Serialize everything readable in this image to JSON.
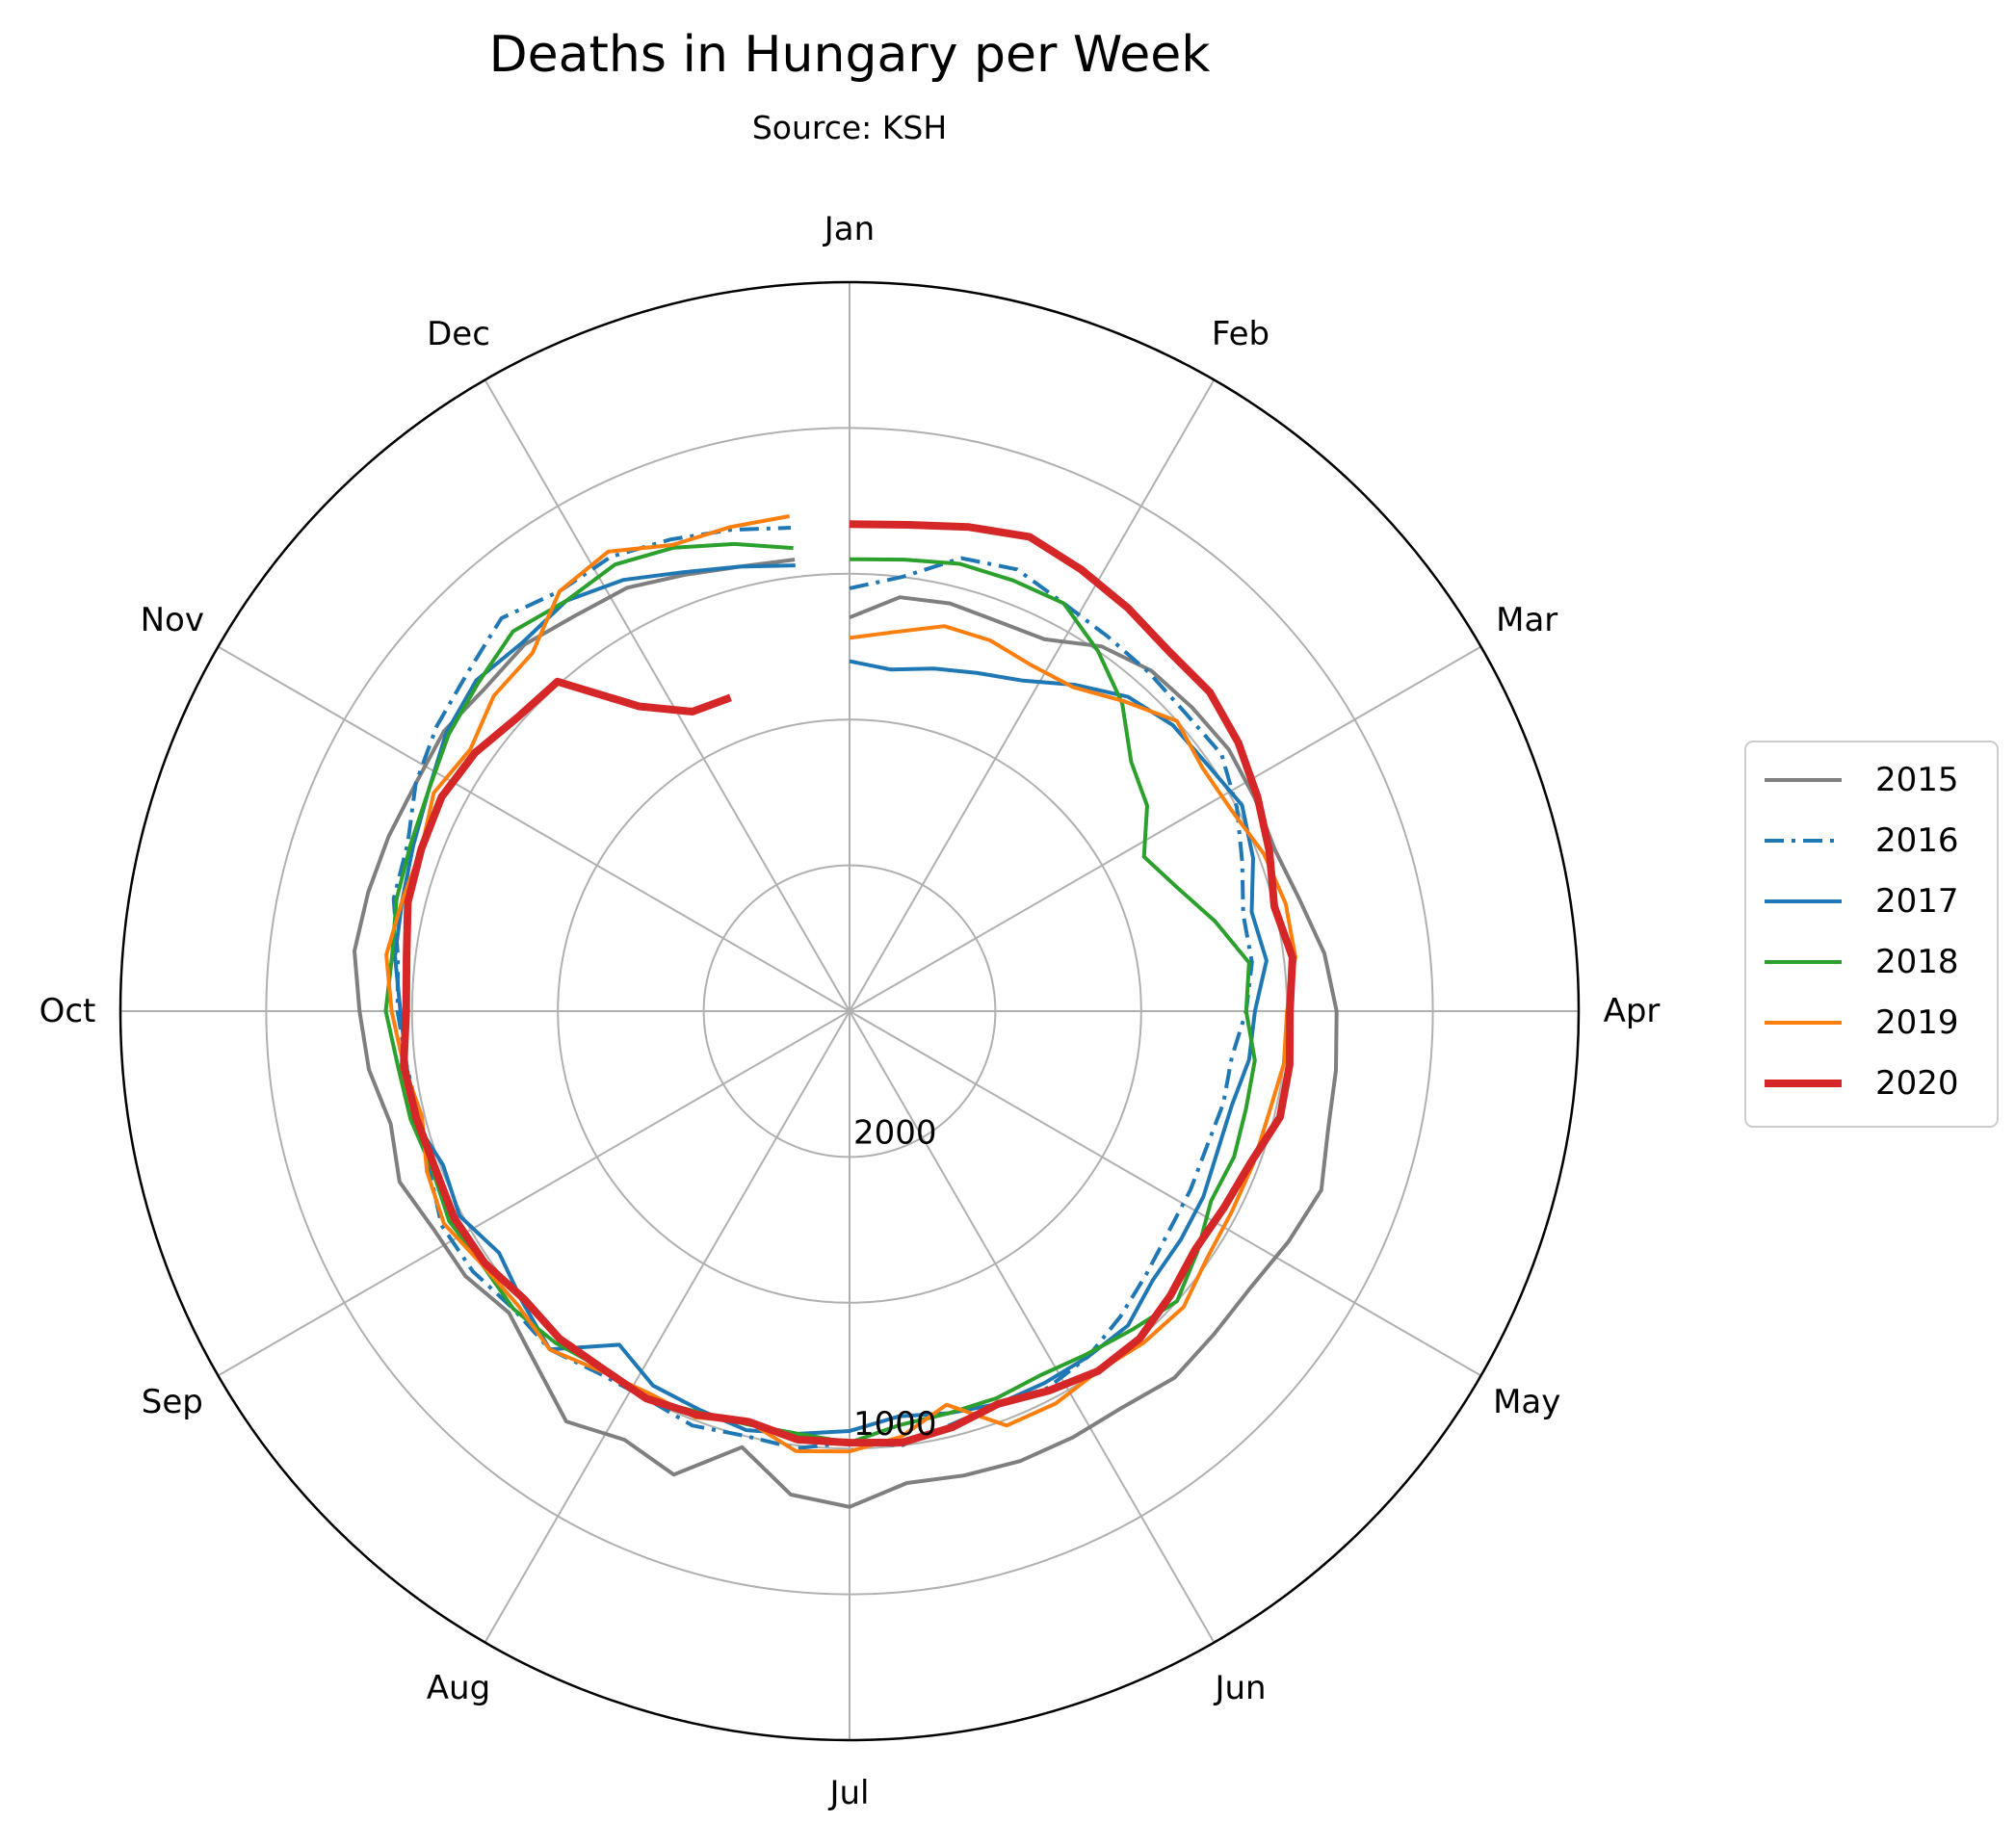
{
  "chart_data": {
    "type": "line",
    "projection": "polar",
    "title": "Deaths in Hungary per Week",
    "subtitle": "Source: KSH",
    "theta_labels": [
      "Jan",
      "Feb",
      "Mar",
      "Apr",
      "May",
      "Jun",
      "Jul",
      "Aug",
      "Sep",
      "Oct",
      "Nov",
      "Dec"
    ],
    "r_axis": {
      "inverted": true,
      "center_value": 4000,
      "edge_value": 1500,
      "gridlines": [
        1500,
        2000,
        2500,
        3000,
        3500,
        4000
      ],
      "tick_labels": [
        "1000",
        "2000"
      ],
      "tick_label_values": [
        2500,
        3500
      ]
    },
    "grid": true,
    "legend_placement": "right",
    "series": [
      {
        "name": "2015",
        "color": "#7f7f7f",
        "style": "solid",
        "width": "normal",
        "values": [
          2650,
          2570,
          2560,
          2570,
          2560,
          2480,
          2440,
          2430,
          2420,
          2430,
          2440,
          2410,
          2360,
          2330,
          2320,
          2310,
          2270,
          2300,
          2330,
          2330,
          2320,
          2350,
          2350,
          2350,
          2360,
          2370,
          2300,
          2330,
          2460,
          2300,
          2340,
          2290,
          2380,
          2440,
          2400,
          2390,
          2350,
          2380,
          2340,
          2320,
          2290,
          2300,
          2310,
          2320,
          2310,
          2330,
          2320,
          2350,
          2360,
          2400,
          2430,
          2440
        ]
      },
      {
        "name": "2016",
        "color": "#1f77b4",
        "style": "dashdot",
        "width": "normal",
        "values": [
          2550,
          2500,
          2400,
          2380,
          2420,
          2440,
          2450,
          2460,
          2450,
          2500,
          2560,
          2610,
          2610,
          2640,
          2680,
          2680,
          2690,
          2680,
          2670,
          2640,
          2600,
          2560,
          2540,
          2560,
          2540,
          2500,
          2520,
          2490,
          2500,
          2480,
          2500,
          2490,
          2450,
          2460,
          2430,
          2420,
          2460,
          2480,
          2470,
          2450,
          2440,
          2390,
          2380,
          2320,
          2280,
          2250,
          2200,
          2250,
          2240,
          2270,
          2300,
          2330
        ]
      },
      {
        "name": "2017",
        "color": "#1f77b4",
        "style": "solid",
        "width": "normal",
        "values": [
          2800,
          2820,
          2790,
          2760,
          2720,
          2640,
          2560,
          2520,
          2510,
          2480,
          2520,
          2580,
          2560,
          2610,
          2620,
          2650,
          2650,
          2630,
          2620,
          2610,
          2560,
          2560,
          2560,
          2560,
          2580,
          2600,
          2560,
          2540,
          2520,
          2540,
          2550,
          2610,
          2450,
          2500,
          2540,
          2490,
          2510,
          2460,
          2470,
          2460,
          2430,
          2420,
          2400,
          2370,
          2320,
          2290,
          2310,
          2290,
          2330,
          2390,
          2430,
          2460
        ]
      },
      {
        "name": "2018",
        "color": "#2ca02c",
        "style": "solid",
        "width": "normal",
        "values": [
          2450,
          2440,
          2420,
          2420,
          2420,
          2500,
          2590,
          2710,
          2760,
          2860,
          2800,
          2710,
          2620,
          2640,
          2600,
          2600,
          2590,
          2600,
          2550,
          2500,
          2540,
          2570,
          2590,
          2580,
          2580,
          2570,
          2520,
          2540,
          2540,
          2530,
          2500,
          2510,
          2480,
          2460,
          2470,
          2450,
          2470,
          2450,
          2440,
          2410,
          2420,
          2400,
          2390,
          2370,
          2330,
          2300,
          2260,
          2290,
          2270,
          2300,
          2350,
          2400
        ]
      },
      {
        "name": "2019",
        "color": "#ff7f0e",
        "style": "solid",
        "width": "normal",
        "values": [
          2720,
          2690,
          2640,
          2640,
          2660,
          2650,
          2580,
          2500,
          2530,
          2520,
          2480,
          2460,
          2460,
          2500,
          2500,
          2520,
          2520,
          2520,
          2510,
          2470,
          2480,
          2500,
          2480,
          2480,
          2610,
          2530,
          2490,
          2480,
          2550,
          2510,
          2520,
          2500,
          2450,
          2480,
          2470,
          2430,
          2450,
          2490,
          2460,
          2430,
          2400,
          2420,
          2430,
          2390,
          2420,
          2370,
          2360,
          2250,
          2220,
          2290,
          2290,
          2290
        ]
      },
      {
        "name": "2020",
        "color": "#d62728",
        "style": "solid",
        "width": "thick",
        "values": [
          2330,
          2320,
          2290,
          2260,
          2290,
          2320,
          2350,
          2350,
          2380,
          2420,
          2460,
          2500,
          2470,
          2490,
          2480,
          2480,
          2530,
          2550,
          2560,
          2530,
          2500,
          2500,
          2530,
          2560,
          2530,
          2510,
          2520,
          2520,
          2550,
          2520,
          2500,
          2510,
          2500,
          2510,
          2480,
          2470,
          2480,
          2470,
          2460,
          2480,
          2470,
          2440,
          2430,
          2420,
          2440,
          2480,
          2490,
          2730,
          2840,
          2850
        ]
      }
    ]
  }
}
